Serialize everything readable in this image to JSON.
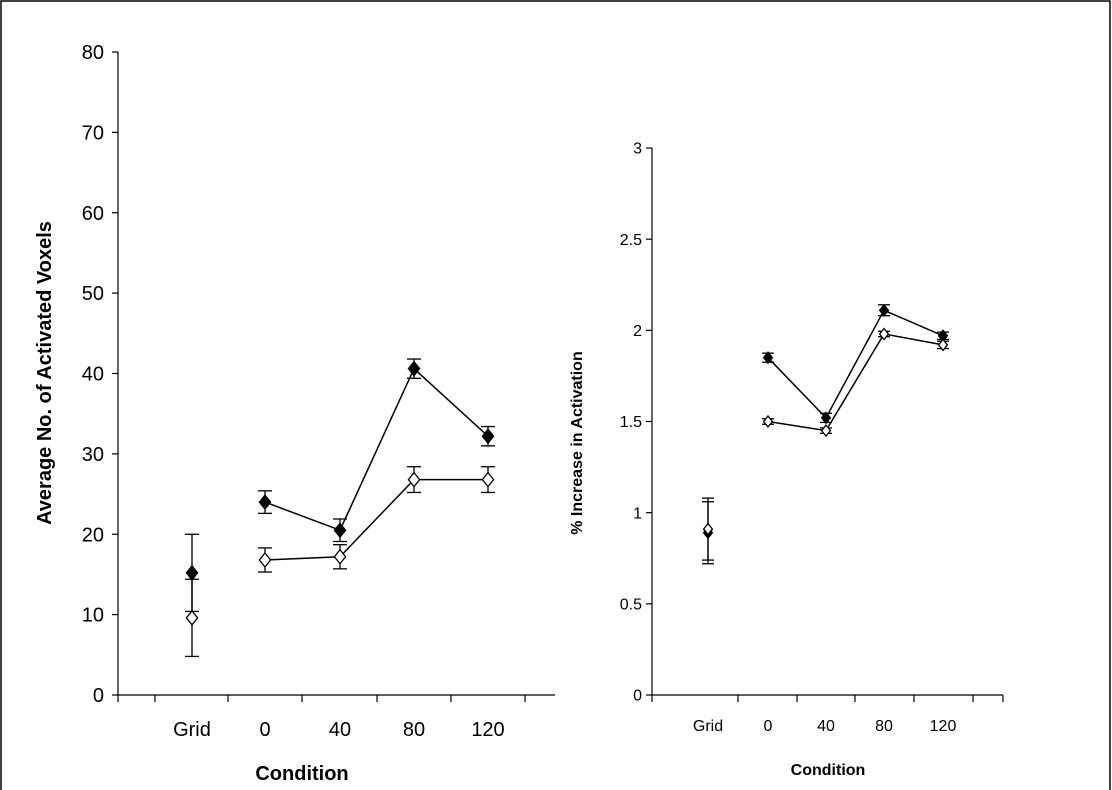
{
  "chart_data": [
    {
      "type": "scatter",
      "title": "",
      "xlabel": "Condition",
      "ylabel": "Average No. of  Activated Voxels",
      "categories": [
        "Grid",
        "0",
        "40",
        "80",
        "120"
      ],
      "ylim": [
        0,
        80
      ],
      "yticks": [
        0,
        10,
        20,
        30,
        40,
        50,
        60,
        70,
        80
      ],
      "grid": false,
      "series": [
        {
          "marker": "filled-diamond",
          "values": [
            15.2,
            24.0,
            20.5,
            40.6,
            32.2
          ],
          "errors": [
            4.8,
            1.4,
            1.4,
            1.2,
            1.2
          ],
          "connected_from_index": 1
        },
        {
          "marker": "open-diamond",
          "values": [
            9.6,
            16.8,
            17.2,
            26.8,
            26.8
          ],
          "errors": [
            4.8,
            1.5,
            1.5,
            1.6,
            1.6
          ],
          "connected_from_index": 1
        }
      ]
    },
    {
      "type": "scatter",
      "title": "",
      "xlabel": "Condition",
      "ylabel": "% Increase in Activation",
      "categories": [
        "Grid",
        "0",
        "40",
        "80",
        "120"
      ],
      "ylim": [
        0,
        3
      ],
      "yticks": [
        0,
        0.5,
        1,
        1.5,
        2,
        2.5,
        3
      ],
      "ytick_labels": [
        "0",
        "0.5",
        "1",
        "1.5",
        "2",
        "2.5",
        "3"
      ],
      "grid": false,
      "series": [
        {
          "marker": "filled-diamond",
          "values": [
            0.89,
            1.85,
            1.52,
            2.11,
            1.97
          ],
          "errors": [
            0.17,
            0.025,
            0.025,
            0.03,
            0.02
          ],
          "connected_from_index": 1
        },
        {
          "marker": "open-diamond",
          "values": [
            0.91,
            1.5,
            1.45,
            1.98,
            1.92
          ],
          "errors": [
            0.17,
            0.015,
            0.015,
            0.015,
            0.02
          ],
          "connected_from_index": 1
        }
      ]
    }
  ]
}
